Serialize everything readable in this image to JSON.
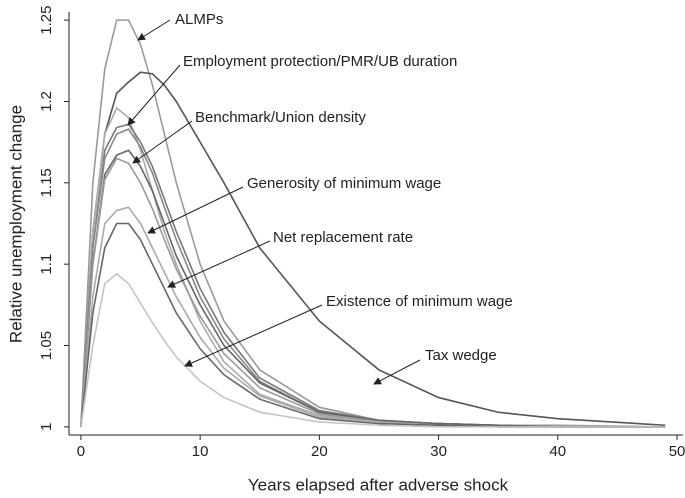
{
  "chart_data": {
    "type": "line",
    "xlabel": "Years elapsed after adverse shock",
    "ylabel": "Relative unemployment change",
    "x": [
      0,
      1,
      2,
      3,
      4,
      5,
      6,
      7,
      8,
      10,
      12,
      15,
      20,
      25,
      30,
      35,
      40,
      49
    ],
    "series": [
      {
        "color": "#999999",
        "values": [
          1,
          1.15,
          1.22,
          1.25,
          1.25,
          1.235,
          1.21,
          1.18,
          1.15,
          1.1,
          1.065,
          1.035,
          1.012,
          1.004,
          1.002,
          1.001,
          1.001,
          1.0
        ]
      },
      {
        "color": "#555555",
        "values": [
          1,
          1.12,
          1.18,
          1.205,
          1.212,
          1.218,
          1.217,
          1.21,
          1.2,
          1.175,
          1.15,
          1.11,
          1.065,
          1.035,
          1.018,
          1.009,
          1.005,
          1.001
        ]
      },
      {
        "color": "#aaaaaa",
        "values": [
          1,
          1.12,
          1.18,
          1.196,
          1.19,
          1.17,
          1.145,
          1.12,
          1.1,
          1.065,
          1.04,
          1.02,
          1.007,
          1.003,
          1.001,
          1.0,
          1.0,
          1.0
        ]
      },
      {
        "color": "#777777",
        "values": [
          1,
          1.11,
          1.17,
          1.184,
          1.186,
          1.175,
          1.16,
          1.14,
          1.12,
          1.085,
          1.058,
          1.03,
          1.01,
          1.004,
          1.002,
          1.001,
          1.0,
          1.0
        ]
      },
      {
        "color": "#888888",
        "values": [
          1,
          1.11,
          1.165,
          1.18,
          1.183,
          1.172,
          1.156,
          1.135,
          1.115,
          1.08,
          1.054,
          1.028,
          1.009,
          1.004,
          1.002,
          1.001,
          1.0,
          1.0
        ]
      },
      {
        "color": "#666666",
        "values": [
          1,
          1.1,
          1.155,
          1.167,
          1.17,
          1.16,
          1.145,
          1.125,
          1.105,
          1.075,
          1.05,
          1.027,
          1.009,
          1.004,
          1.002,
          1.001,
          1.0,
          1.0
        ]
      },
      {
        "color": "#999999",
        "values": [
          1,
          1.1,
          1.152,
          1.165,
          1.162,
          1.15,
          1.134,
          1.115,
          1.097,
          1.068,
          1.045,
          1.024,
          1.008,
          1.003,
          1.001,
          1.0,
          1.0,
          1.0
        ]
      },
      {
        "color": "#aaaaaa",
        "values": [
          1,
          1.08,
          1.125,
          1.133,
          1.135,
          1.125,
          1.11,
          1.095,
          1.08,
          1.055,
          1.036,
          1.019,
          1.006,
          1.003,
          1.001,
          1.0,
          1.0,
          1.0
        ]
      },
      {
        "color": "#666666",
        "values": [
          1,
          1.07,
          1.11,
          1.125,
          1.125,
          1.115,
          1.1,
          1.085,
          1.07,
          1.048,
          1.032,
          1.017,
          1.005,
          1.002,
          1.001,
          1.0,
          1.0,
          1.0
        ]
      },
      {
        "color": "#c4c4c4",
        "values": [
          1,
          1.05,
          1.088,
          1.094,
          1.088,
          1.076,
          1.064,
          1.053,
          1.043,
          1.028,
          1.018,
          1.009,
          1.003,
          1.001,
          1.0,
          1.0,
          1.0,
          1.0
        ]
      }
    ],
    "annotations": [
      "ALMPs",
      "Employment protection/PMR/UB duration",
      "Benchmark/Union density",
      "Generosity of minimum wage",
      "Net replacement rate",
      "Existence of minimum wage",
      "Tax wedge"
    ],
    "xlim": [
      -1,
      50.5
    ],
    "xticks": [
      0,
      10,
      20,
      30,
      40,
      50
    ],
    "ylim": [
      0.995,
      1.255
    ],
    "yticks": [
      1,
      1.05,
      1.1,
      1.15,
      1.2,
      1.25
    ]
  }
}
